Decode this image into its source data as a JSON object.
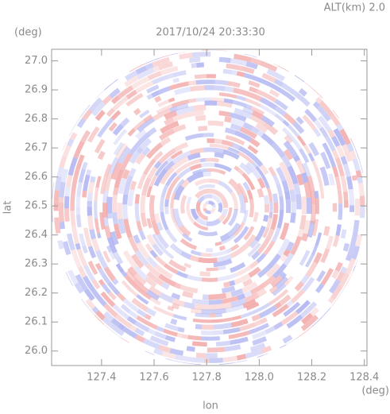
{
  "chart_data": {
    "type": "ppi",
    "title": "2017/10/24 20:33:30",
    "subtitle": "ALT(km) 2.0",
    "xlabel": "lon",
    "ylabel": "lat",
    "xunit": "(deg)",
    "yunit": "(deg)",
    "xlim": [
      127.21,
      128.41
    ],
    "ylim": [
      25.95,
      27.04
    ],
    "xticks": [
      127.4,
      127.6,
      127.8,
      {
        "value": 128.0,
        "label": "128.0"
      },
      128.2,
      128.4
    ],
    "yticks": [
      {
        "value": 26.0,
        "label": "26.0"
      },
      26.1,
      26.2,
      26.3,
      26.4,
      26.5,
      26.6,
      26.7,
      26.8,
      26.9,
      {
        "value": 27.0,
        "label": "27.0"
      }
    ],
    "colors": [
      "#f2a4a4",
      "#a9aef0"
    ]
  }
}
